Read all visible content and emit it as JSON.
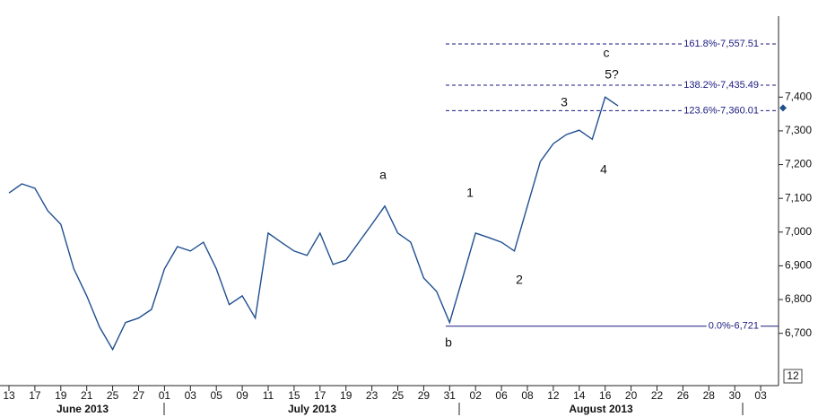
{
  "chart_data": {
    "type": "line",
    "categories": [
      "13",
      null,
      "17",
      null,
      "19",
      null,
      "21",
      null,
      "25",
      null,
      "27",
      null,
      "01",
      null,
      "03",
      null,
      "05",
      null,
      "09",
      null,
      "11",
      null,
      "15",
      null,
      "17",
      null,
      "19",
      null,
      "23",
      null,
      "25",
      null,
      "29",
      null,
      "31",
      null,
      "02",
      null,
      "06",
      null,
      "08",
      null,
      "12",
      null,
      "14",
      null,
      "16",
      null,
      "20",
      null,
      "22",
      null,
      "26",
      null,
      "28",
      null,
      "30",
      null,
      "03"
    ],
    "values": [
      7116,
      7143,
      7130,
      7063,
      7023,
      6891,
      6811,
      6718,
      6652,
      6732,
      6745,
      6771,
      6891,
      6957,
      6944,
      6970,
      6891,
      6785,
      6811,
      6745,
      6997,
      6970,
      6944,
      6931,
      6997,
      6904,
      6917,
      6970,
      7023,
      7077,
      6997,
      6970,
      6864,
      6824,
      6732,
      6864,
      6997,
      6984,
      6970,
      6944,
      7077,
      7209,
      7262,
      7289,
      7302,
      7275,
      7400,
      7374,
      null,
      null,
      null,
      null,
      null,
      null,
      null,
      null,
      null,
      null,
      null
    ],
    "color": "#1f4f8f",
    "ylim": [
      6545,
      7640
    ],
    "yticks": [
      {
        "value": 6700,
        "label": "6,700"
      },
      {
        "value": 6800,
        "label": "6,800"
      },
      {
        "value": 6900,
        "label": "6,900"
      },
      {
        "value": 7000,
        "label": "7,000"
      },
      {
        "value": 7100,
        "label": "7,100"
      },
      {
        "value": 7200,
        "label": "7,200"
      },
      {
        "value": 7300,
        "label": "7,300"
      },
      {
        "value": 7400,
        "label": "7,400"
      }
    ],
    "levels": [
      {
        "label": "161.8%-7,557.51",
        "value": 7557.51,
        "style": "dashed"
      },
      {
        "label": "138.2%-7,435.49",
        "value": 7435.49,
        "style": "dashed"
      },
      {
        "label": "123.6%-7,360.01",
        "value": 7360.01,
        "style": "dashed"
      },
      {
        "label": "0.0%-6,721",
        "value": 6721,
        "style": "solid"
      }
    ],
    "level_color": "#1a1a80",
    "wave_labels": [
      "a",
      "b",
      "1",
      "2",
      "3",
      "4",
      "5?",
      "c"
    ],
    "months": [
      "June 2013",
      "July 2013",
      "August 2013"
    ],
    "corner_label": "12",
    "marker_value": 7368
  }
}
